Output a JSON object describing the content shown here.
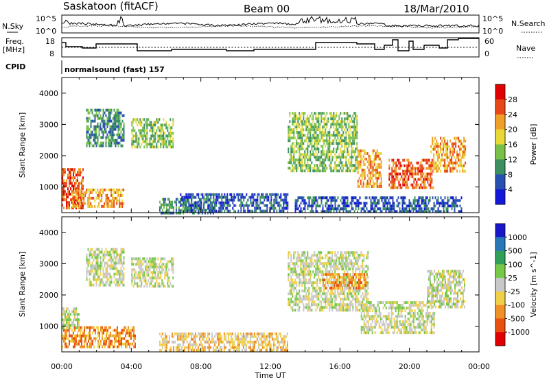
{
  "header": {
    "station": "Saskatoon (fitACF)",
    "beam": "Beam 00",
    "date": "18/Mar/2010"
  },
  "noise_panel": {
    "left_label": "N.Sky",
    "right_label": "N.Search",
    "left_ticks": [
      "10^5",
      "10^0"
    ],
    "right_ticks": [
      "10^5",
      "10^0"
    ]
  },
  "freq_panel": {
    "left_label_line1": "Freq.",
    "left_label_line2": "[MHz]",
    "right_label": "Nave",
    "left_ticks": [
      "18",
      "8"
    ],
    "right_ticks": [
      "60",
      "0"
    ]
  },
  "cpid": {
    "label": "CPID",
    "value": "normalsound (fast) 157"
  },
  "x_axis": {
    "label": "Time UT",
    "ticks": [
      "00:00",
      "04:00",
      "08:00",
      "12:00",
      "16:00",
      "20:00",
      "00:00"
    ]
  },
  "chart_data": [
    {
      "type": "heatmap",
      "panel": "power",
      "xlabel": "Time UT",
      "ylabel": "Slant Range [km]",
      "xlim": [
        0,
        24
      ],
      "ylim": [
        180,
        4500
      ],
      "yticks": [
        "1000",
        "2000",
        "3000",
        "4000"
      ],
      "colorbar": {
        "label": "Power [dB]",
        "ticks": [
          "4",
          "8",
          "12",
          "16",
          "20",
          "24",
          "28"
        ],
        "colors": [
          "#1418d8",
          "#2850b0",
          "#3c9060",
          "#78c048",
          "#e8d838",
          "#f0a028",
          "#e84818",
          "#e00000"
        ]
      },
      "regions": [
        {
          "t0": 0.0,
          "t1": 1.2,
          "r0": 300,
          "r1": 1600,
          "level": 6
        },
        {
          "t0": 0.6,
          "t1": 3.6,
          "r0": 400,
          "r1": 950,
          "level": 5
        },
        {
          "t0": 1.4,
          "t1": 3.6,
          "r0": 2300,
          "r1": 3500,
          "level": 2
        },
        {
          "t0": 4.0,
          "t1": 6.4,
          "r0": 2300,
          "r1": 3200,
          "level": 3
        },
        {
          "t0": 5.6,
          "t1": 8.8,
          "r0": 200,
          "r1": 650,
          "level": 2
        },
        {
          "t0": 6.8,
          "t1": 13.0,
          "r0": 200,
          "r1": 800,
          "level": 1
        },
        {
          "t0": 13.0,
          "t1": 17.0,
          "r0": 1500,
          "r1": 3400,
          "level": 3
        },
        {
          "t0": 17.0,
          "t1": 18.4,
          "r0": 1000,
          "r1": 2200,
          "level": 5
        },
        {
          "t0": 18.8,
          "t1": 21.4,
          "r0": 1000,
          "r1": 1900,
          "level": 6
        },
        {
          "t0": 21.2,
          "t1": 23.2,
          "r0": 1500,
          "r1": 2600,
          "level": 5
        },
        {
          "t0": 13.4,
          "t1": 23.0,
          "r0": 200,
          "r1": 700,
          "level": 1
        }
      ]
    },
    {
      "type": "heatmap",
      "panel": "velocity",
      "xlabel": "Time UT",
      "ylabel": "Slant Range [km]",
      "xlim": [
        0,
        24
      ],
      "ylim": [
        180,
        4500
      ],
      "yticks": [
        "1000",
        "2000",
        "3000",
        "4000"
      ],
      "colorbar": {
        "label": "Velocity [m s^-1]",
        "ticks": [
          "1000",
          "500",
          "100",
          "25",
          "-25",
          "-100",
          "-500",
          "-1000"
        ],
        "colors": [
          "#1818c8",
          "#2878b8",
          "#30a058",
          "#78c848",
          "#c8c8c8",
          "#f0d048",
          "#f09028",
          "#e85010",
          "#e00000"
        ]
      },
      "regions": [
        {
          "t0": 0.0,
          "t1": 4.2,
          "r0": 300,
          "r1": 1000,
          "level": 6
        },
        {
          "t0": 0.0,
          "t1": 1.0,
          "r0": 900,
          "r1": 1600,
          "level": 4
        },
        {
          "t0": 1.4,
          "t1": 3.6,
          "r0": 2300,
          "r1": 3500,
          "level": 4
        },
        {
          "t0": 4.0,
          "t1": 6.4,
          "r0": 2300,
          "r1": 3200,
          "level": 4
        },
        {
          "t0": 5.6,
          "t1": 13.0,
          "r0": 200,
          "r1": 800,
          "level": 5
        },
        {
          "t0": 13.0,
          "t1": 17.6,
          "r0": 1500,
          "r1": 3400,
          "level": 4
        },
        {
          "t0": 15.0,
          "t1": 17.6,
          "r0": 2200,
          "r1": 2700,
          "level": 6
        },
        {
          "t0": 17.2,
          "t1": 21.4,
          "r0": 800,
          "r1": 1800,
          "level": 4
        },
        {
          "t0": 21.0,
          "t1": 23.2,
          "r0": 1600,
          "r1": 2800,
          "level": 4
        }
      ]
    }
  ]
}
